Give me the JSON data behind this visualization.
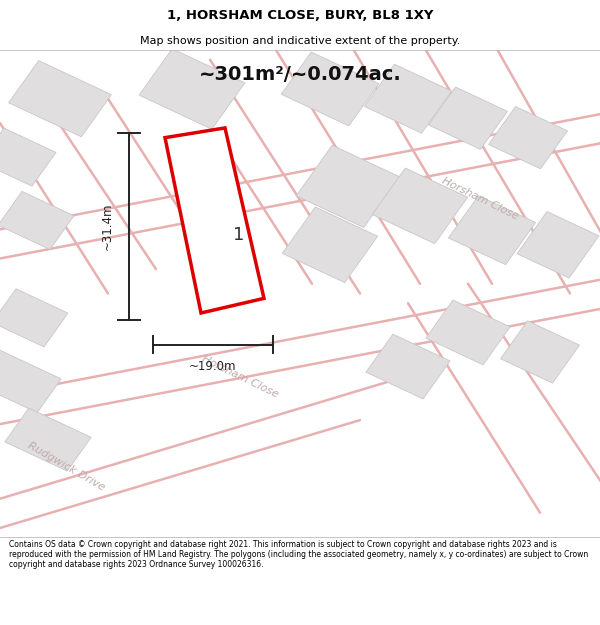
{
  "title_line1": "1, HORSHAM CLOSE, BURY, BL8 1XY",
  "title_line2": "Map shows position and indicative extent of the property.",
  "area_text": "~301m²/~0.074ac.",
  "dim_width": "~19.0m",
  "dim_height": "~31.4m",
  "label_number": "1",
  "street_label_upper": "Horsham Close",
  "street_label_lower": "Horsham Close",
  "street_label_rudg": "Rudgwick Drive",
  "footer_text": "Contains OS data © Crown copyright and database right 2021. This information is subject to Crown copyright and database rights 2023 and is reproduced with the permission of HM Land Registry. The polygons (including the associated geometry, namely x, y co-ordinates) are subject to Crown copyright and database rights 2023 Ordnance Survey 100026316.",
  "map_bg": "#f8f7f7",
  "road_color": "#e8b0b0",
  "block_color": "#e0dede",
  "block_edge": "#c8c8c8",
  "plot_color": "#ffffff",
  "plot_edge": "#dd0000",
  "dim_color": "#222222",
  "title_color": "#000000",
  "footer_color": "#000000",
  "street_text_color": "#c0aaaa"
}
